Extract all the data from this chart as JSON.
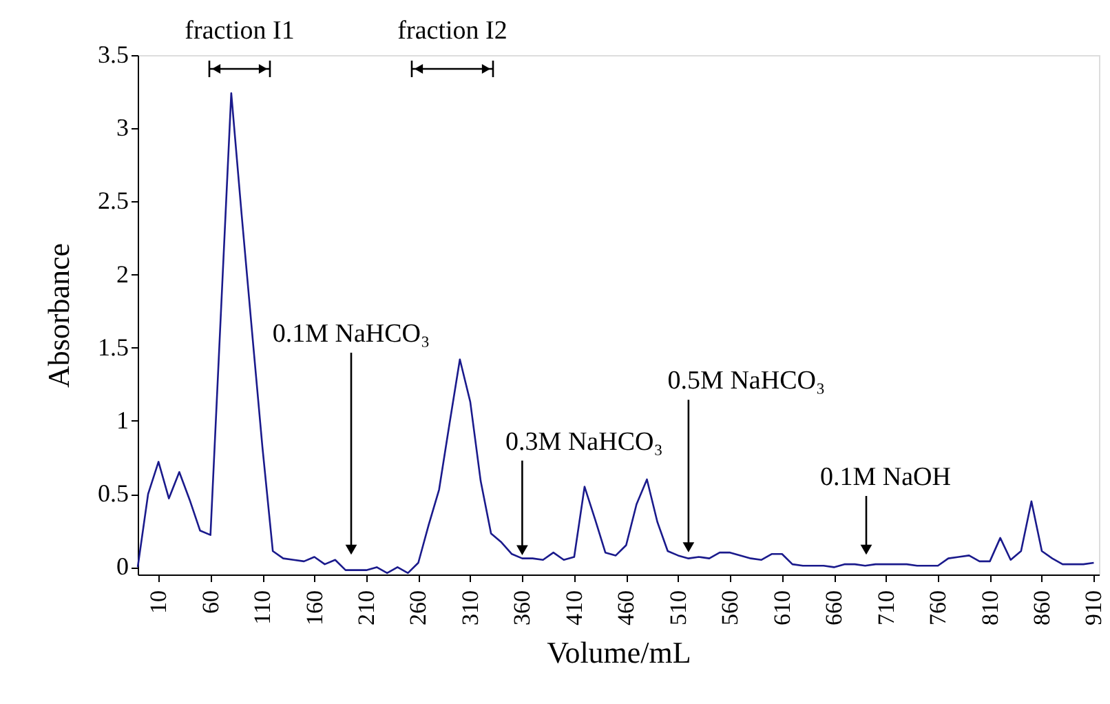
{
  "chart_data": {
    "type": "line",
    "xlabel": "Volume/mL",
    "ylabel": "Absorbance",
    "x": [
      -10,
      0,
      10,
      20,
      30,
      40,
      50,
      60,
      70,
      80,
      90,
      100,
      110,
      120,
      130,
      140,
      150,
      160,
      170,
      180,
      190,
      200,
      210,
      220,
      230,
      240,
      250,
      260,
      270,
      280,
      290,
      300,
      310,
      320,
      330,
      340,
      350,
      360,
      370,
      380,
      390,
      400,
      410,
      420,
      430,
      440,
      450,
      460,
      470,
      480,
      490,
      500,
      510,
      520,
      530,
      540,
      550,
      560,
      570,
      580,
      590,
      600,
      610,
      620,
      630,
      640,
      650,
      660,
      670,
      680,
      690,
      700,
      710,
      720,
      730,
      740,
      750,
      760,
      770,
      780,
      790,
      800,
      810,
      820,
      830,
      840,
      850,
      860,
      870,
      880,
      890,
      900,
      910
    ],
    "series": [
      {
        "color": "#1a1a8c",
        "values": [
          0,
          0.5,
          0.72,
          0.47,
          0.65,
          0.46,
          0.25,
          0.22,
          1.73,
          3.24,
          2.41,
          1.61,
          0.82,
          0.11,
          0.06,
          0.05,
          0.04,
          0.07,
          0.02,
          0.05,
          -0.02,
          -0.02,
          -0.02,
          0,
          -0.04,
          0,
          -0.04,
          0.03,
          0.29,
          0.53,
          0.98,
          1.42,
          1.13,
          0.59,
          0.23,
          0.17,
          0.09,
          0.06,
          0.06,
          0.05,
          0.1,
          0.05,
          0.07,
          0.55,
          0.33,
          0.1,
          0.08,
          0.15,
          0.43,
          0.6,
          0.31,
          0.11,
          0.08,
          0.06,
          0.07,
          0.06,
          0.1,
          0.1,
          0.08,
          0.06,
          0.05,
          0.09,
          0.09,
          0.02,
          0.01,
          0.01,
          0.01,
          0,
          0.02,
          0.02,
          0.01,
          0.02,
          0.02,
          0.02,
          0.02,
          0.01,
          0.01,
          0.01,
          0.06,
          0.07,
          0.08,
          0.04,
          0.04,
          0.2,
          0.05,
          0.11,
          0.45,
          0.11,
          0.06,
          0.02,
          0.02,
          0.02,
          0.03
        ]
      }
    ],
    "xlim": [
      -10,
      915
    ],
    "xticks": [
      10,
      60,
      110,
      160,
      210,
      260,
      310,
      360,
      410,
      460,
      510,
      560,
      610,
      660,
      710,
      760,
      810,
      860,
      910
    ],
    "ylim": [
      -0.05,
      3.5
    ],
    "yticks": [
      0,
      0.5,
      1,
      1.5,
      2,
      2.5,
      3,
      3.5
    ],
    "grid": false,
    "marker": "none",
    "line_style": "solid",
    "annotations": [
      "0.1M NaHCO₃",
      {
        "text": "0.3M NaHCO₃",
        "x": 360,
        "y": 0.06
      },
      {
        "text": "0.5M NaHCO₃",
        "x": 520,
        "y": 0.08
      },
      "0.1M NaOH",
      "fraction I1",
      "fraction I2"
    ]
  }
}
